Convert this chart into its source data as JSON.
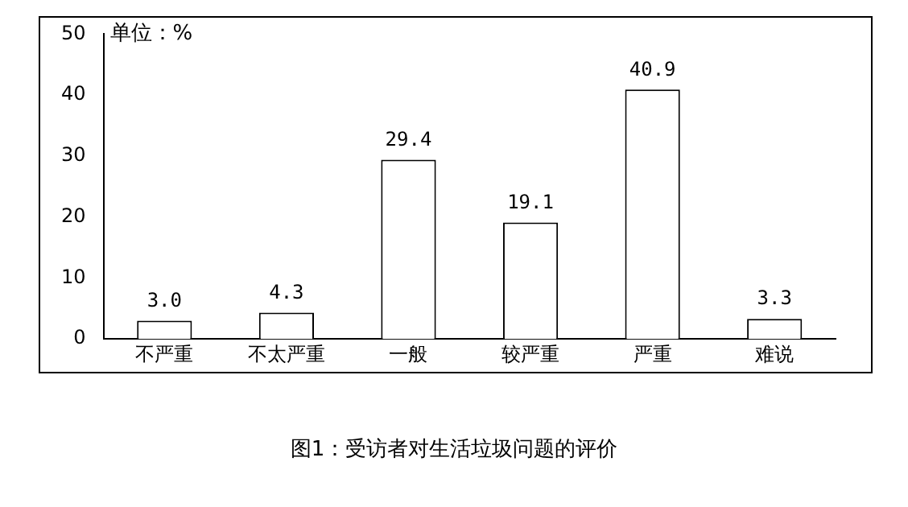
{
  "chart_data": {
    "type": "bar",
    "title": "图1：受访者对生活垃圾问题的评价",
    "ylabel": "单位：%",
    "categories": [
      "不严重",
      "不太严重",
      "一般",
      "较严重",
      "严重",
      "难说"
    ],
    "values": [
      3.0,
      4.3,
      29.4,
      19.1,
      40.9,
      3.3
    ],
    "value_labels": [
      "3.0",
      "4.3",
      "29.4",
      "19.1",
      "40.9",
      "3.3"
    ],
    "color": "#ffffff",
    "ylim": [
      0,
      50
    ],
    "yticks": [
      0,
      10,
      20,
      30,
      40,
      50
    ],
    "grid": false,
    "legend": false
  }
}
